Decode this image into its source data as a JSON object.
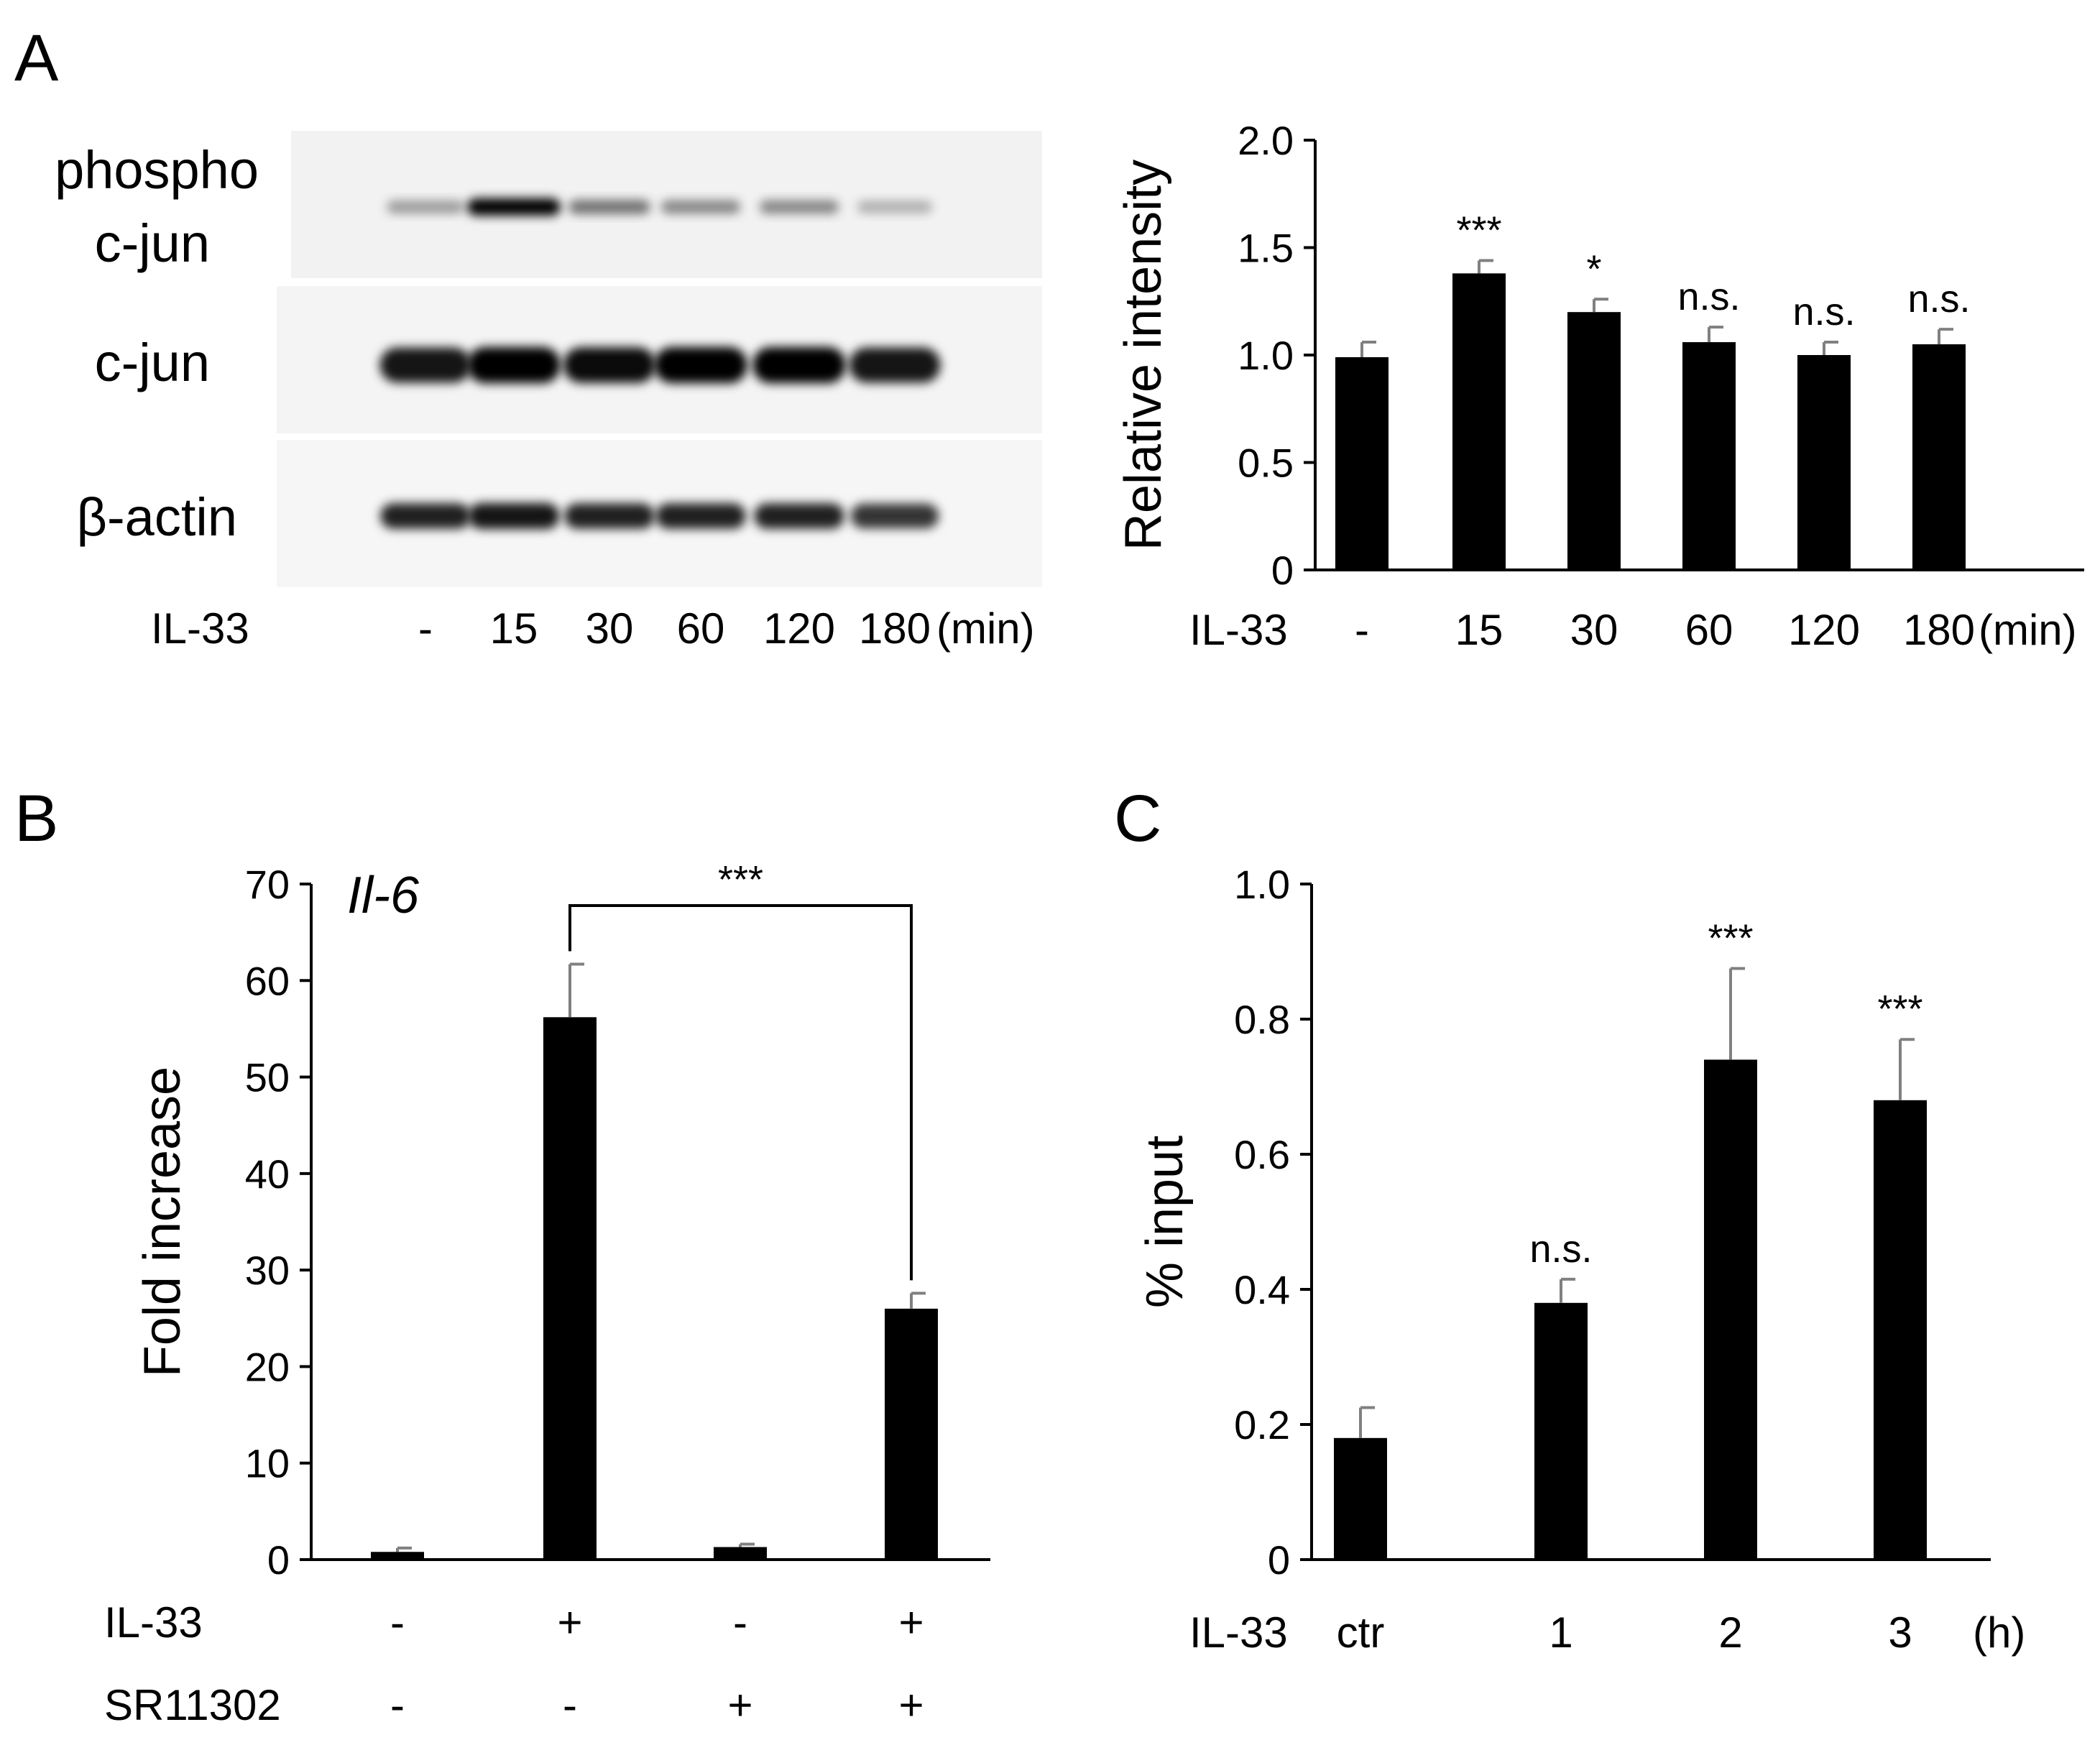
{
  "panels": {
    "a": {
      "letter": "A",
      "blot": {
        "rows": [
          {
            "label_lines": [
              "phospho",
              "c-jun"
            ],
            "bands": [
              0.25,
              1.0,
              0.45,
              0.35,
              0.35,
              0.15
            ]
          },
          {
            "label_lines": [
              "c-jun"
            ],
            "bands": [
              0.9,
              1.0,
              0.95,
              1.0,
              1.0,
              0.9
            ]
          },
          {
            "label_lines": [
              "β-actin"
            ],
            "bands": [
              0.85,
              0.9,
              0.85,
              0.85,
              0.85,
              0.75
            ]
          }
        ],
        "condition_label": "IL-33",
        "lanes": [
          "-",
          "15",
          "30",
          "60",
          "120",
          "180"
        ],
        "unit": "(min)"
      }
    },
    "b": {
      "letter": "B"
    },
    "c": {
      "letter": "C"
    }
  },
  "chart_data": [
    {
      "id": "a",
      "type": "bar",
      "title": "",
      "ylabel": "Relative intensity",
      "xlabel": "",
      "ylim": [
        0,
        2.0
      ],
      "yticks": [
        "0",
        "0.5",
        "1.0",
        "1.5",
        "2.0"
      ],
      "ytick_values": [
        0,
        0.5,
        1.0,
        1.5,
        2.0
      ],
      "categories": [
        "-",
        "15",
        "30",
        "60",
        "120",
        "180"
      ],
      "values": [
        0.99,
        1.38,
        1.2,
        1.06,
        1.0,
        1.05
      ],
      "errors": [
        0.07,
        0.06,
        0.06,
        0.07,
        0.06,
        0.07
      ],
      "significance": [
        "",
        "***",
        "*",
        "n.s.",
        "n.s.",
        "n.s."
      ],
      "condition_rows": [
        {
          "label": "IL-33",
          "values": [
            "-",
            "15",
            "30",
            "60",
            "120",
            "180"
          ],
          "unit": "(min)"
        }
      ],
      "grid": false,
      "bar_color": "#000000"
    },
    {
      "id": "b",
      "type": "bar",
      "title": "Il-6",
      "ylabel": "Fold increase",
      "xlabel": "",
      "ylim": [
        0,
        70
      ],
      "yticks": [
        "0",
        "10",
        "20",
        "30",
        "40",
        "50",
        "60",
        "70"
      ],
      "ytick_values": [
        0,
        10,
        20,
        30,
        40,
        50,
        60,
        70
      ],
      "categories": [
        "IL-33 - / SR11302 -",
        "IL-33 + / SR11302 -",
        "IL-33 - / SR11302 +",
        "IL-33 + / SR11302 +"
      ],
      "values": [
        0.8,
        56.2,
        1.3,
        26.0
      ],
      "errors": [
        0.4,
        5.5,
        0.3,
        1.6
      ],
      "significance": [
        "",
        "",
        "",
        ""
      ],
      "bracket": {
        "from": 1,
        "to": 3,
        "label": "***"
      },
      "condition_rows": [
        {
          "label": "IL-33",
          "values": [
            "-",
            "+",
            "-",
            "+"
          ],
          "unit": ""
        },
        {
          "label": "SR11302",
          "values": [
            "-",
            "-",
            "+",
            "+"
          ],
          "unit": ""
        }
      ],
      "grid": false,
      "bar_color": "#000000"
    },
    {
      "id": "c",
      "type": "bar",
      "title": "",
      "ylabel": "% input",
      "xlabel": "",
      "ylim": [
        0,
        1.0
      ],
      "yticks": [
        "0",
        "0.2",
        "0.4",
        "0.6",
        "0.8",
        "1.0"
      ],
      "ytick_values": [
        0,
        0.2,
        0.4,
        0.6,
        0.8,
        1.0
      ],
      "categories": [
        "ctr",
        "1",
        "2",
        "3"
      ],
      "values": [
        0.18,
        0.38,
        0.74,
        0.68
      ],
      "errors": [
        0.045,
        0.035,
        0.135,
        0.09
      ],
      "significance": [
        "",
        "n.s.",
        "***",
        "***"
      ],
      "condition_rows": [
        {
          "label": "IL-33",
          "values": [
            "ctr",
            "1",
            "2",
            "3"
          ],
          "unit": "(h)"
        }
      ],
      "grid": false,
      "bar_color": "#000000"
    }
  ]
}
